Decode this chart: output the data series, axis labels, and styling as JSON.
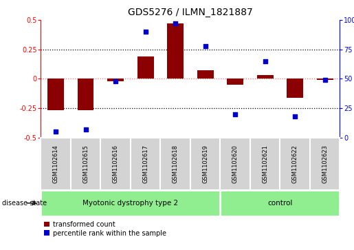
{
  "title": "GDS5276 / ILMN_1821887",
  "samples": [
    "GSM1102614",
    "GSM1102615",
    "GSM1102616",
    "GSM1102617",
    "GSM1102618",
    "GSM1102619",
    "GSM1102620",
    "GSM1102621",
    "GSM1102622",
    "GSM1102623"
  ],
  "transformed_count": [
    -0.27,
    -0.27,
    -0.02,
    0.19,
    0.47,
    0.07,
    -0.05,
    0.03,
    -0.16,
    -0.01
  ],
  "percentile_rank": [
    5,
    7,
    48,
    90,
    97,
    78,
    20,
    65,
    18,
    49
  ],
  "group1_count": 6,
  "group2_count": 4,
  "group1_label": "Myotonic dystrophy type 2",
  "group2_label": "control",
  "group_color": "#90EE90",
  "bar_color": "#8B0000",
  "dot_color": "#0000CD",
  "ylim_left": [
    -0.5,
    0.5
  ],
  "ylim_right": [
    0,
    100
  ],
  "yticks_left": [
    -0.5,
    -0.25,
    0.0,
    0.25,
    0.5
  ],
  "yticks_right": [
    0,
    25,
    50,
    75,
    100
  ],
  "hlines": [
    0.25,
    -0.25
  ],
  "hline_zero_color": "#FF6666",
  "bg_color": "#FFFFFF",
  "sample_box_color": "#D3D3D3",
  "disease_state_label": "disease state",
  "legend_label_tc": "transformed count",
  "legend_label_pr": "percentile rank within the sample",
  "title_fontsize": 10,
  "tick_fontsize": 7,
  "sample_fontsize": 6,
  "legend_fontsize": 7,
  "group_fontsize": 7.5,
  "bar_width": 0.55
}
